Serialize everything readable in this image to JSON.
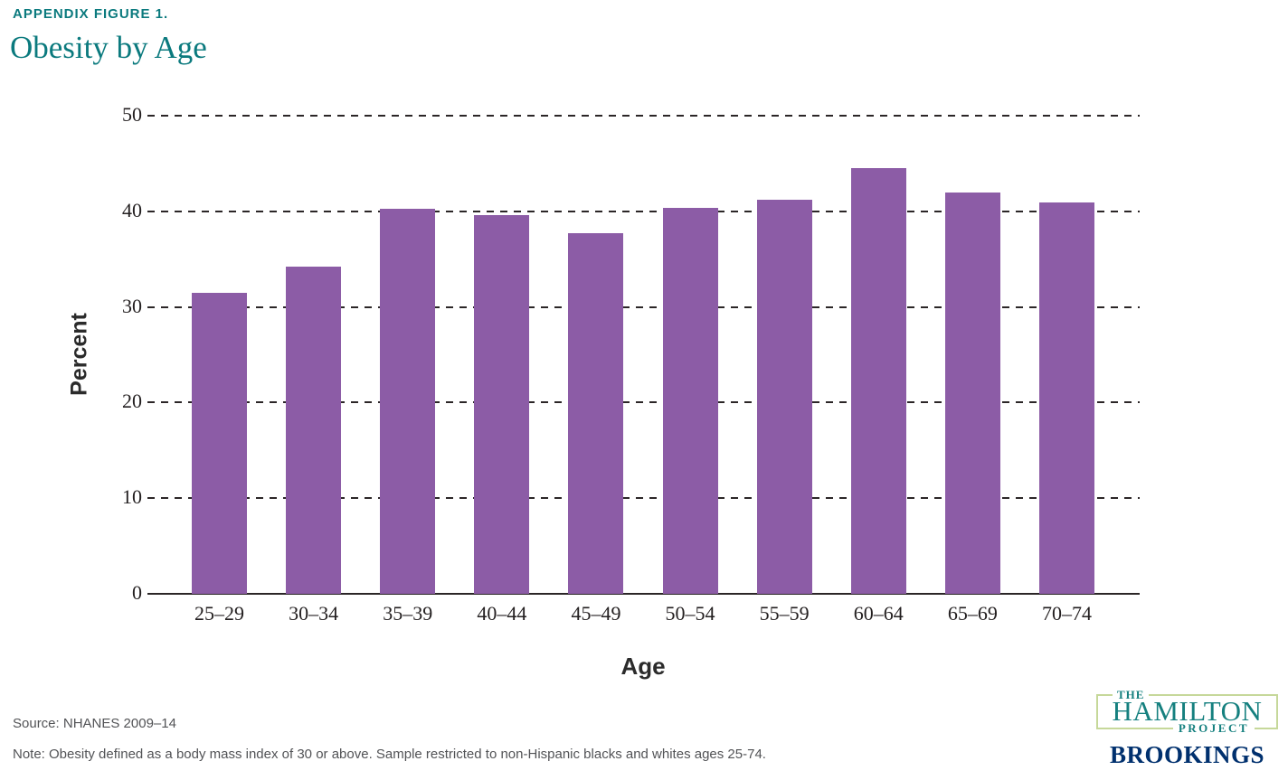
{
  "header": {
    "eyebrow": "APPENDIX FIGURE 1.",
    "title": "Obesity by Age"
  },
  "chart_data": {
    "type": "bar",
    "categories": [
      "25–29",
      "30–34",
      "35–39",
      "40–44",
      "45–49",
      "50–54",
      "55–59",
      "60–64",
      "65–69",
      "70–74"
    ],
    "values": [
      31.5,
      34.2,
      40.3,
      39.6,
      37.7,
      40.4,
      41.2,
      44.5,
      42.0,
      40.9
    ],
    "title": "Obesity by Age",
    "xlabel": "Age",
    "ylabel": "Percent",
    "ylim": [
      0,
      50
    ],
    "yticks": [
      0,
      10,
      20,
      30,
      40,
      50
    ],
    "grid": "horizontal dashed",
    "legend": "none",
    "bar_color": "#8c5ca6"
  },
  "footer": {
    "source": "Source: NHANES 2009–14",
    "note": "Note: Obesity defined as a body mass index of 30 or above. Sample restricted to non-Hispanic blacks and whites ages 25-74."
  },
  "logo": {
    "the": "THE",
    "hamilton": "HAMILTON",
    "project": "PROJECT",
    "brookings": "BROOKINGS",
    "teal": "#15807f",
    "navy": "#00306e",
    "border_green": "#c6d89a"
  },
  "colors": {
    "title_teal": "#0b7a7e",
    "bar_purple": "#8c5ca6",
    "axis_dark": "#231f20",
    "footnote_gray": "#525356"
  }
}
